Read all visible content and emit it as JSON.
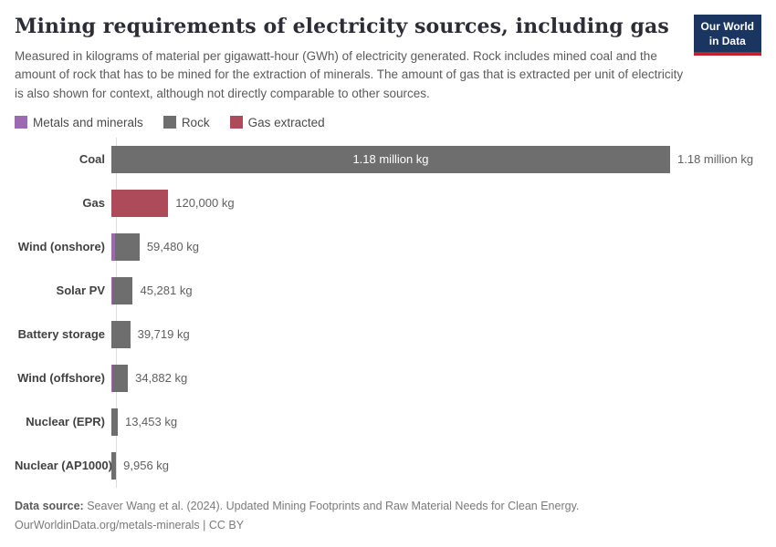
{
  "header": {
    "title": "Mining requirements of electricity sources, including gas",
    "subtitle": "Measured in kilograms of material per gigawatt-hour (GWh) of electricity generated. Rock includes mined coal and the amount of rock that has to be mined for the extraction of minerals. The amount of gas that is extracted per unit of electricity is also shown for context, although not directly comparable to other sources.",
    "logo_line1": "Our World",
    "logo_line2": "in Data"
  },
  "legend": {
    "items": [
      {
        "label": "Metals and minerals",
        "color": "#9b6ab0"
      },
      {
        "label": "Rock",
        "color": "#6e6e6e"
      },
      {
        "label": "Gas extracted",
        "color": "#ad4b5b"
      }
    ]
  },
  "chart_data": {
    "type": "bar",
    "orientation": "horizontal",
    "unit": "kg of material per GWh",
    "xlim": [
      0,
      1180000
    ],
    "grid": false,
    "legend_position": "top-left",
    "series_colors": {
      "Metals and minerals": "#9b6ab0",
      "Rock": "#6e6e6e",
      "Gas extracted": "#ad4b5b"
    },
    "categories": [
      "Coal",
      "Gas",
      "Wind (onshore)",
      "Solar PV",
      "Battery storage",
      "Wind (offshore)",
      "Nuclear (EPR)",
      "Nuclear (AP1000)"
    ],
    "bars": [
      {
        "label": "Coal",
        "total_kg": 1180000,
        "value_label": "1.18 million kg",
        "inside_label": "1.18 million kg",
        "segments": [
          {
            "series": "Rock",
            "kg": 1180000
          }
        ]
      },
      {
        "label": "Gas",
        "total_kg": 120000,
        "value_label": "120,000 kg",
        "segments": [
          {
            "series": "Gas extracted",
            "kg": 120000
          }
        ]
      },
      {
        "label": "Wind (onshore)",
        "total_kg": 59480,
        "value_label": "59,480 kg",
        "segments": [
          {
            "series": "Metals and minerals",
            "kg": 7700
          },
          {
            "series": "Rock",
            "kg": 51780
          }
        ]
      },
      {
        "label": "Solar PV",
        "total_kg": 45281,
        "value_label": "45,281 kg",
        "segments": [
          {
            "series": "Metals and minerals",
            "kg": 1900
          },
          {
            "series": "Rock",
            "kg": 43381
          }
        ]
      },
      {
        "label": "Battery storage",
        "total_kg": 39719,
        "value_label": "39,719 kg",
        "segments": [
          {
            "series": "Rock",
            "kg": 39719
          }
        ]
      },
      {
        "label": "Wind (offshore)",
        "total_kg": 34882,
        "value_label": "34,882 kg",
        "segments": [
          {
            "series": "Metals and minerals",
            "kg": 1900
          },
          {
            "series": "Rock",
            "kg": 32982
          }
        ]
      },
      {
        "label": "Nuclear (EPR)",
        "total_kg": 13453,
        "value_label": "13,453 kg",
        "segments": [
          {
            "series": "Rock",
            "kg": 13453
          }
        ]
      },
      {
        "label": "Nuclear (AP1000)",
        "total_kg": 9956,
        "value_label": "9,956 kg",
        "segments": [
          {
            "series": "Rock",
            "kg": 9956
          }
        ]
      }
    ]
  },
  "footer": {
    "data_source_label": "Data source:",
    "data_source_text": " Seaver Wang et al. (2024). Updated Mining Footprints and Raw Material Needs for Clean Energy.",
    "url": "OurWorldinData.org/metals-minerals",
    "divider": " | ",
    "license": "CC BY"
  }
}
